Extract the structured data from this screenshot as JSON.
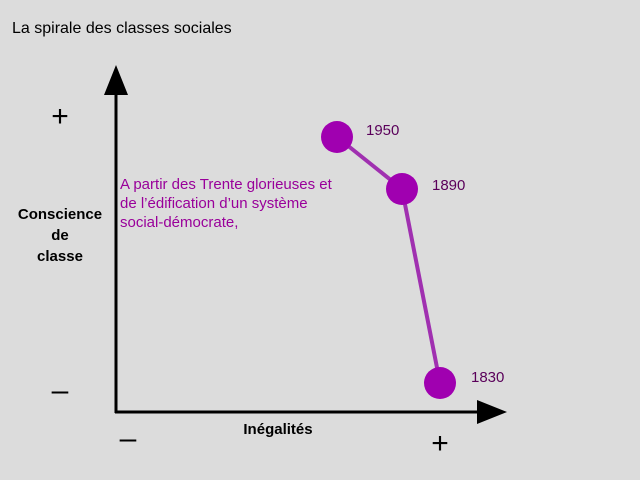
{
  "header": {
    "title": "La spirale des classes sociales"
  },
  "y_axis": {
    "label_lines": [
      "Conscience",
      "de",
      "classe"
    ],
    "top_sign": "+",
    "bottom_sign": "–"
  },
  "x_axis": {
    "label": "Inégalités",
    "left_sign": "–",
    "right_sign": "+"
  },
  "annotation": {
    "lines": [
      "A partir des Trente glorieuses et",
      "de l’édification d’un système",
      "social-démocrate,"
    ]
  },
  "nodes": [
    {
      "label": "1950"
    },
    {
      "label": "1890"
    },
    {
      "label": "1830"
    }
  ]
}
